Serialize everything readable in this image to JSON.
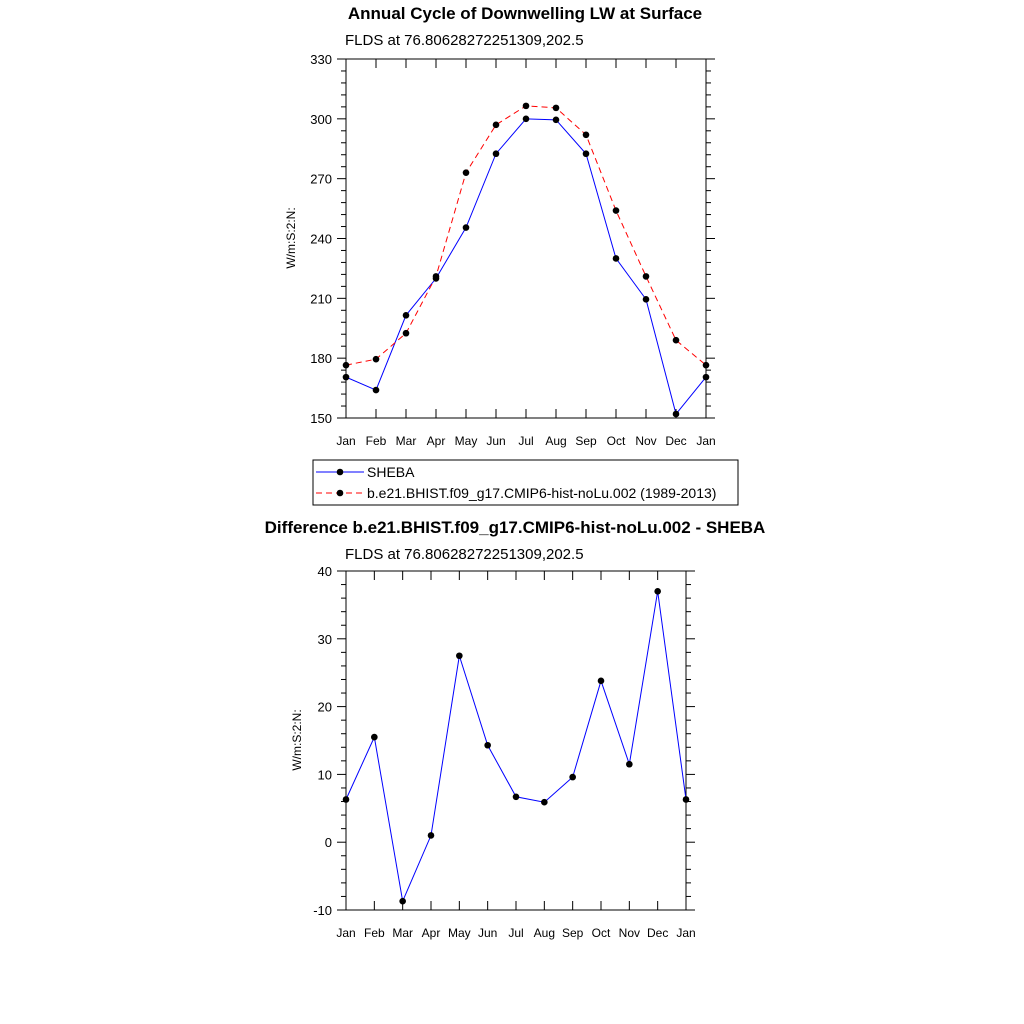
{
  "chart_data": [
    {
      "type": "line",
      "title": "Annual Cycle of Downwelling LW at Surface",
      "subtitle": "FLDS at 76.80628272251309,202.5",
      "ylabel": "W/m:S:2:N:",
      "ylim": [
        150,
        330
      ],
      "yticks": [
        150,
        180,
        210,
        240,
        270,
        300,
        330
      ],
      "categories": [
        "Jan",
        "Feb",
        "Mar",
        "Apr",
        "May",
        "Jun",
        "Jul",
        "Aug",
        "Sep",
        "Oct",
        "Nov",
        "Dec",
        "Jan"
      ],
      "series": [
        {
          "name": "SHEBA",
          "color": "#0000ff",
          "dash": "solid",
          "values": [
            170.5,
            164,
            201.5,
            220,
            245.5,
            282.5,
            300,
            299.5,
            282.5,
            230,
            209.5,
            152,
            170.5
          ]
        },
        {
          "name": "b.e21.BHIST.f09_g17.CMIP6-hist-noLu.002 (1989-2013)",
          "color": "#ff0000",
          "dash": "dashed",
          "values": [
            176.5,
            179.5,
            192.5,
            221,
            273,
            297,
            306.5,
            305.5,
            292,
            254,
            221,
            189,
            176.5
          ]
        }
      ],
      "legend_position": "below"
    },
    {
      "type": "line",
      "title": "Difference b.e21.BHIST.f09_g17.CMIP6-hist-noLu.002 - SHEBA",
      "subtitle": "FLDS at 76.80628272251309,202.5",
      "ylabel": "W/m:S:2:N:",
      "ylim": [
        -10,
        40
      ],
      "yticks": [
        -10,
        0,
        10,
        20,
        30,
        40
      ],
      "categories": [
        "Jan",
        "Feb",
        "Mar",
        "Apr",
        "May",
        "Jun",
        "Jul",
        "Aug",
        "Sep",
        "Oct",
        "Nov",
        "Dec",
        "Jan"
      ],
      "series": [
        {
          "name": "Difference",
          "color": "#0000ff",
          "dash": "solid",
          "values": [
            6.3,
            15.5,
            -8.7,
            1.0,
            27.5,
            14.3,
            6.7,
            5.9,
            9.6,
            23.8,
            11.5,
            37.0,
            6.3
          ]
        }
      ]
    }
  ]
}
